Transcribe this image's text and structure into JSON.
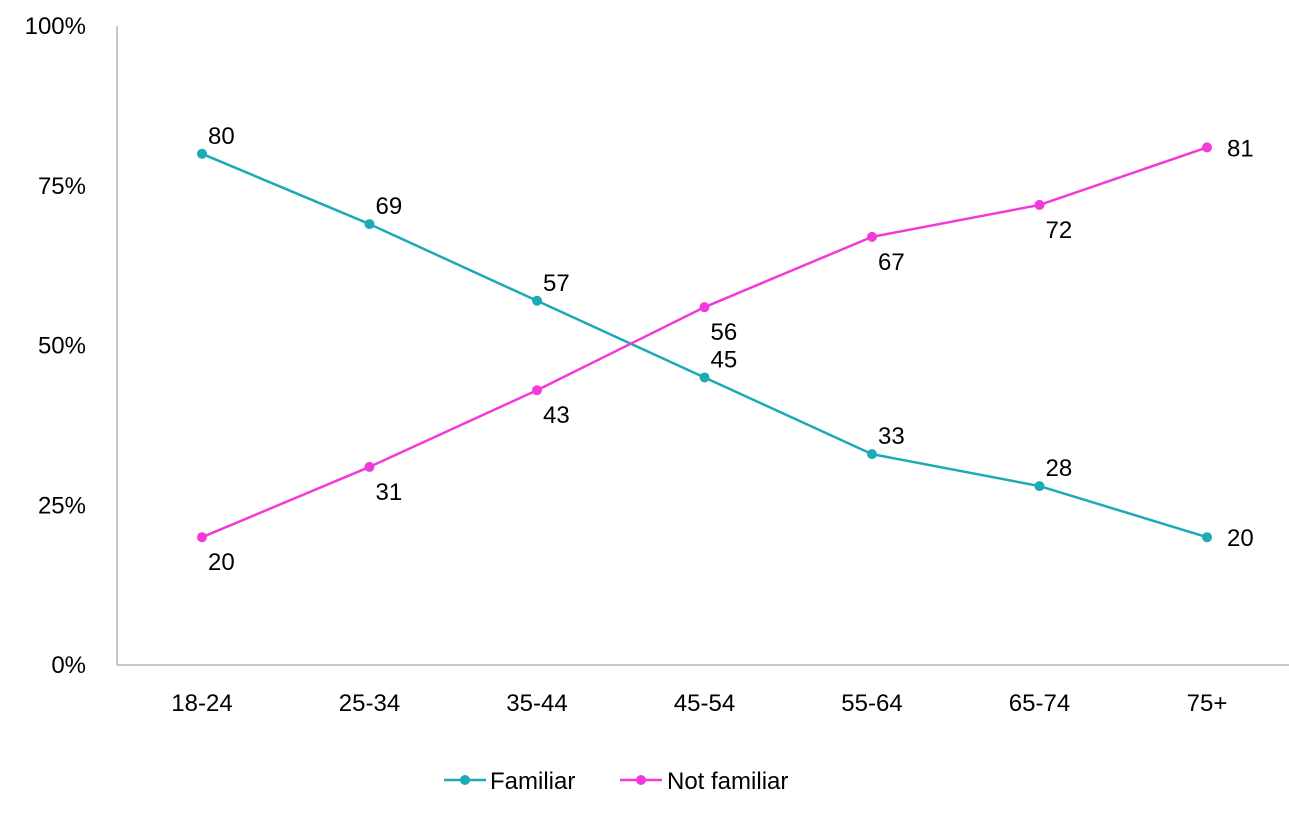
{
  "chart_data": {
    "type": "line",
    "title": "",
    "xlabel": "",
    "ylabel": "",
    "categories": [
      "18-24",
      "25-34",
      "35-44",
      "45-54",
      "55-64",
      "65-74",
      "75+"
    ],
    "ylim": [
      0,
      100
    ],
    "y_ticks": [
      {
        "value": 0,
        "label": "0%"
      },
      {
        "value": 25,
        "label": "25%"
      },
      {
        "value": 50,
        "label": "50%"
      },
      {
        "value": 75,
        "label": "75%"
      },
      {
        "value": 100,
        "label": "100%"
      }
    ],
    "grid": false,
    "legend_position": "bottom",
    "series": [
      {
        "name": "Familiar",
        "color": "#1aabb5",
        "values": [
          80,
          69,
          57,
          45,
          33,
          28,
          20
        ],
        "label_placement": [
          "above",
          "above",
          "above",
          "above",
          "above",
          "above",
          "right"
        ]
      },
      {
        "name": "Not familiar",
        "color": "#f23ad8",
        "values": [
          20,
          31,
          43,
          56,
          67,
          72,
          81
        ],
        "label_placement": [
          "below",
          "below",
          "below",
          "below",
          "below",
          "below",
          "right"
        ]
      }
    ]
  }
}
